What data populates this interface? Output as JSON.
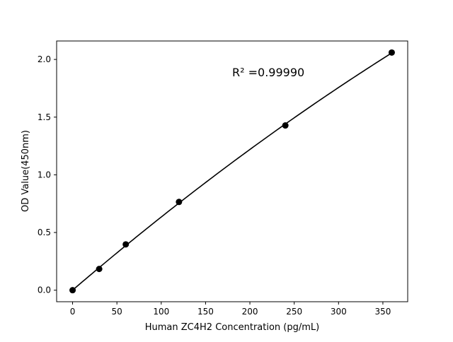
{
  "chart_data": {
    "type": "scatter",
    "title": "",
    "xlabel": "Human ZC4H2 Concentration (pg/mL)",
    "ylabel": "OD Value(450nm)",
    "xlim": [
      -18,
      378
    ],
    "ylim": [
      -0.1,
      2.16
    ],
    "xticks": [
      0,
      50,
      100,
      150,
      200,
      250,
      300,
      350
    ],
    "yticks": [
      0.0,
      0.5,
      1.0,
      1.5,
      2.0
    ],
    "xtick_labels": [
      "0",
      "50",
      "100",
      "150",
      "200",
      "250",
      "300",
      "350"
    ],
    "ytick_labels": [
      "0.0",
      "0.5",
      "1.0",
      "1.5",
      "2.0"
    ],
    "grid": false,
    "series": [
      {
        "x": [
          0,
          30,
          60,
          120,
          240,
          360
        ],
        "y": [
          0.0,
          0.184,
          0.397,
          0.765,
          1.428,
          2.06
        ],
        "marker": "circle",
        "color": "#000000",
        "fit_line": true
      }
    ],
    "annotation": "R² =0.99990"
  }
}
